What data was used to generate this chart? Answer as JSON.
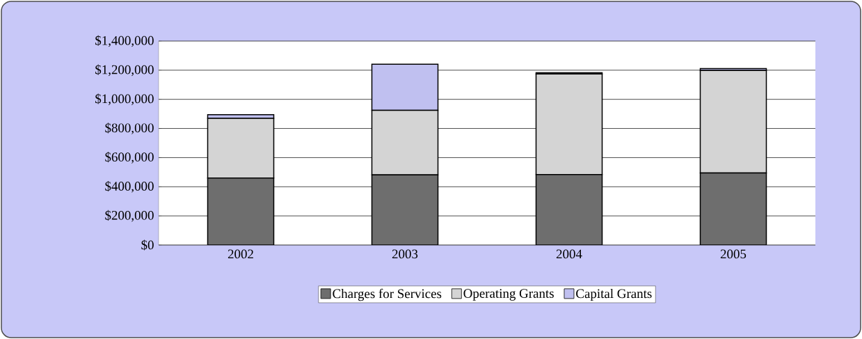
{
  "chart_data": {
    "type": "bar",
    "stacked": true,
    "categories": [
      "2002",
      "2003",
      "2004",
      "2005"
    ],
    "series": [
      {
        "name": "Charges for Services",
        "color": "#6e6e6e",
        "values": [
          460000,
          481000,
          484000,
          495000
        ]
      },
      {
        "name": "Operating Grants",
        "color": "#d4d4d4",
        "values": [
          410000,
          443000,
          690000,
          703000
        ]
      },
      {
        "name": "Capital Grants",
        "color": "#c0c0f0",
        "values": [
          25000,
          317000,
          8000,
          13000
        ]
      }
    ],
    "ylim": [
      0,
      1400000
    ],
    "yticks": [
      {
        "value": 0,
        "label": "$0"
      },
      {
        "value": 200000,
        "label": "$200,000"
      },
      {
        "value": 400000,
        "label": "$400,000"
      },
      {
        "value": 600000,
        "label": "$600,000"
      },
      {
        "value": 800000,
        "label": "$800,000"
      },
      {
        "value": 1000000,
        "label": "$1,000,000"
      },
      {
        "value": 1200000,
        "label": "$1,200,000"
      },
      {
        "value": 1400000,
        "label": "$1,400,000"
      }
    ],
    "grid": "y",
    "legend": "bottom"
  }
}
